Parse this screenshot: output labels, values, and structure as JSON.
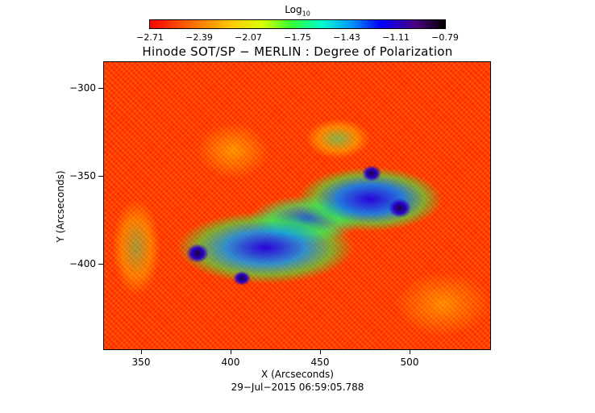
{
  "colorbar": {
    "title_base": "Log",
    "title_sub": "10",
    "labels": [
      "−2.71",
      "−2.39",
      "−2.07",
      "−1.75",
      "−1.43",
      "−1.11",
      "−0.79"
    ]
  },
  "plot": {
    "title": "Hinode SOT/SP − MERLIN : Degree of Polarization",
    "xlabel": "X (Arcseconds)",
    "ylabel": "Y (Arcseconds)",
    "xticks": [
      "350",
      "400",
      "450",
      "500"
    ],
    "yticks": [
      "−300",
      "−350",
      "−400"
    ],
    "timestamp": "29−Jul−2015 06:59:05.788"
  }
}
